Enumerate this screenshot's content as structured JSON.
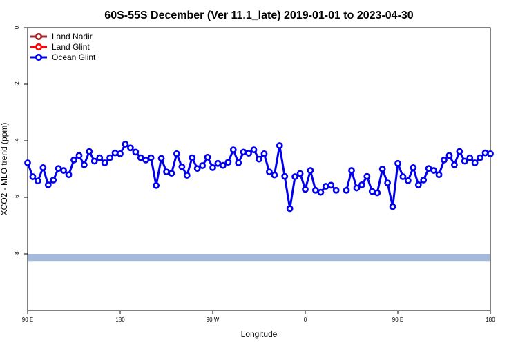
{
  "chart_data": {
    "type": "line",
    "title": "60S-55S December (Ver 11.1_late)   2019-01-01 to 2023-04-30",
    "xlabel": "Longitude",
    "ylabel": "XCO2 - MLO trend (ppm)",
    "xlim": [
      90,
      540
    ],
    "ylim": [
      -10,
      0
    ],
    "x_ticks": [
      {
        "value": 90,
        "label": "90 E"
      },
      {
        "value": 180,
        "label": "180"
      },
      {
        "value": 270,
        "label": "90 W"
      },
      {
        "value": 360,
        "label": "0"
      },
      {
        "value": 450,
        "label": "90 E"
      },
      {
        "value": 540,
        "label": "180"
      }
    ],
    "y_ticks": [
      {
        "value": 0,
        "label": "0"
      },
      {
        "value": -2,
        "label": "-2"
      },
      {
        "value": -4,
        "label": "-4"
      },
      {
        "value": -6,
        "label": "-6"
      },
      {
        "value": -8,
        "label": "-8"
      }
    ],
    "grid": false,
    "legend_position": "top-left",
    "legend": [
      {
        "name": "Land Nadir",
        "color": "#a52a2a"
      },
      {
        "name": "Land Glint",
        "color": "#ff0000"
      },
      {
        "name": "Ocean Glint",
        "color": "#0000ee"
      }
    ],
    "reference_band": {
      "y_min": -8.25,
      "y_max": -8.0,
      "color": "#a5b9dc"
    },
    "series": [
      {
        "name": "Ocean Glint",
        "color": "#0000ee",
        "segments": [
          [
            [
              90,
              -4.78
            ],
            [
              95,
              -5.27
            ],
            [
              100,
              -5.42
            ],
            [
              105,
              -4.95
            ],
            [
              110,
              -5.56
            ],
            [
              115,
              -5.39
            ],
            [
              120,
              -4.98
            ],
            [
              125,
              -5.05
            ],
            [
              130,
              -5.2
            ],
            [
              135,
              -4.68
            ],
            [
              140,
              -4.52
            ],
            [
              145,
              -4.85
            ],
            [
              150,
              -4.38
            ],
            [
              155,
              -4.72
            ],
            [
              160,
              -4.6
            ],
            [
              165,
              -4.78
            ],
            [
              170,
              -4.6
            ],
            [
              175,
              -4.43
            ],
            [
              180,
              -4.46
            ],
            [
              185,
              -4.12
            ],
            [
              190,
              -4.25
            ],
            [
              195,
              -4.4
            ],
            [
              200,
              -4.6
            ],
            [
              205,
              -4.68
            ],
            [
              210,
              -4.6
            ],
            [
              215,
              -5.58
            ],
            [
              220,
              -4.62
            ],
            [
              225,
              -5.1
            ],
            [
              230,
              -5.15
            ],
            [
              235,
              -4.46
            ],
            [
              240,
              -4.92
            ],
            [
              245,
              -5.22
            ],
            [
              250,
              -4.6
            ],
            [
              255,
              -4.98
            ],
            [
              260,
              -4.88
            ],
            [
              265,
              -4.58
            ],
            [
              270,
              -4.95
            ],
            [
              275,
              -4.8
            ],
            [
              280,
              -4.87
            ],
            [
              285,
              -4.76
            ],
            [
              290,
              -4.32
            ],
            [
              295,
              -4.78
            ],
            [
              300,
              -4.4
            ],
            [
              305,
              -4.44
            ],
            [
              310,
              -4.32
            ],
            [
              315,
              -4.65
            ],
            [
              320,
              -4.46
            ],
            [
              325,
              -5.1
            ],
            [
              330,
              -5.21
            ],
            [
              335,
              -4.17
            ],
            [
              340,
              -5.26
            ],
            [
              345,
              -6.4
            ],
            [
              350,
              -5.27
            ],
            [
              355,
              -5.16
            ],
            [
              360,
              -5.72
            ],
            [
              365,
              -5.05
            ],
            [
              370,
              -5.75
            ],
            [
              375,
              -5.82
            ],
            [
              380,
              -5.61
            ],
            [
              385,
              -5.57
            ],
            [
              390,
              -5.75
            ]
          ],
          [
            [
              400,
              -5.75
            ],
            [
              405,
              -5.05
            ],
            [
              410,
              -5.67
            ],
            [
              415,
              -5.56
            ],
            [
              420,
              -5.26
            ],
            [
              425,
              -5.79
            ],
            [
              430,
              -5.84
            ],
            [
              435,
              -5.0
            ],
            [
              440,
              -5.49
            ],
            [
              445,
              -6.33
            ],
            [
              450,
              -4.8
            ],
            [
              455,
              -5.27
            ],
            [
              460,
              -5.41
            ],
            [
              465,
              -4.95
            ],
            [
              470,
              -5.56
            ],
            [
              475,
              -5.39
            ],
            [
              480,
              -4.98
            ],
            [
              485,
              -5.05
            ],
            [
              490,
              -5.2
            ],
            [
              495,
              -4.68
            ],
            [
              500,
              -4.52
            ],
            [
              505,
              -4.85
            ],
            [
              510,
              -4.38
            ],
            [
              515,
              -4.72
            ],
            [
              520,
              -4.6
            ],
            [
              525,
              -4.78
            ],
            [
              530,
              -4.6
            ],
            [
              535,
              -4.43
            ],
            [
              540,
              -4.46
            ]
          ]
        ]
      }
    ]
  }
}
